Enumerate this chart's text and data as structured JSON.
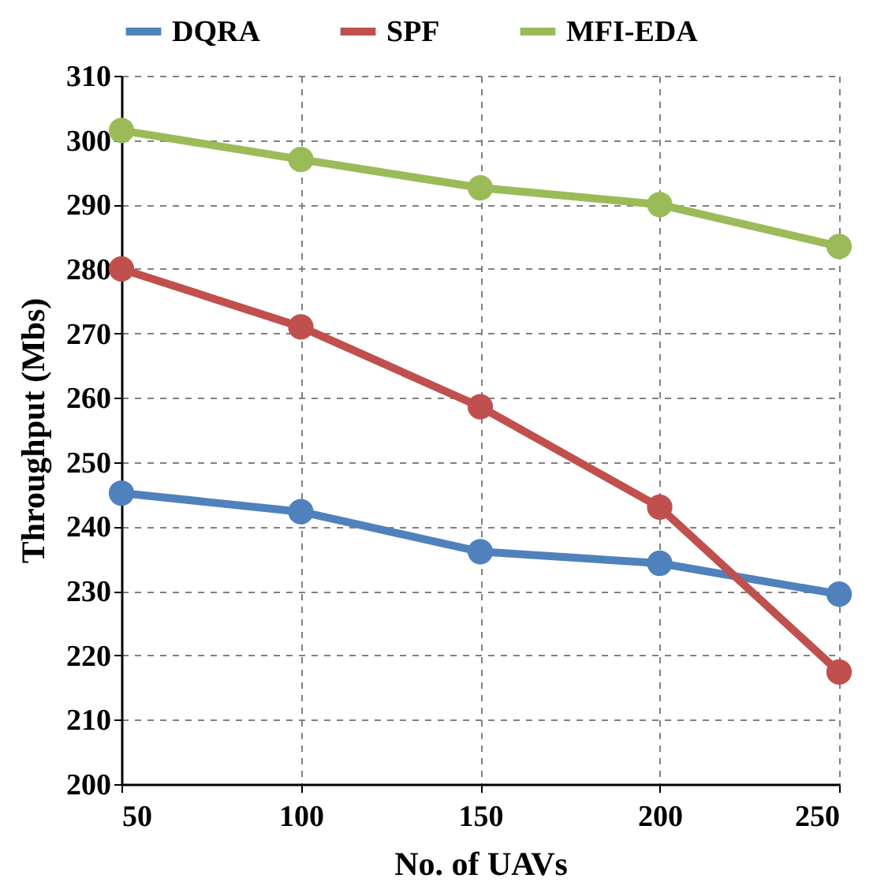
{
  "chart_data": {
    "type": "line",
    "xlabel": "No. of UAVs",
    "ylabel": "Throughput (Mbs)",
    "x": [
      50,
      100,
      150,
      200,
      250
    ],
    "series": [
      {
        "name": "DQRA",
        "color": "#4f81bd",
        "values": [
          245.2,
          242.3,
          236.1,
          234.3,
          229.5
        ]
      },
      {
        "name": "SPF",
        "color": "#c0504d",
        "values": [
          280,
          271,
          258.6,
          243,
          217.4
        ]
      },
      {
        "name": "MFI-EDA",
        "color": "#9bbb59",
        "values": [
          301.5,
          297,
          292.6,
          290,
          283.5
        ]
      }
    ],
    "xlim": [
      50,
      250
    ],
    "xticks": [
      50,
      100,
      150,
      200,
      250
    ],
    "ylim": [
      200,
      310
    ],
    "yticks": [
      200,
      210,
      220,
      230,
      240,
      250,
      260,
      270,
      280,
      290,
      300,
      310
    ],
    "grid": true,
    "legend": "top",
    "marker": "circle",
    "line_style": "solid"
  }
}
